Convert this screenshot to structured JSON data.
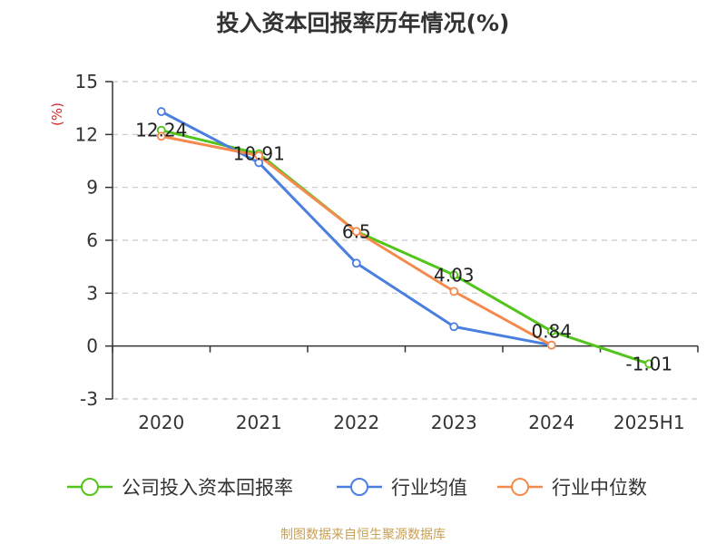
{
  "chart_data": {
    "type": "line",
    "title": "投入资本回报率历年情况(%)",
    "ylabel": "(%)",
    "xlabel": "",
    "categories": [
      "2020",
      "2021",
      "2022",
      "2023",
      "2024",
      "2025H1"
    ],
    "ylim": [
      -3,
      15
    ],
    "yticks": [
      -3,
      0,
      3,
      6,
      9,
      12,
      15
    ],
    "grid": true,
    "legend_position": "bottom",
    "series": [
      {
        "name": "公司投入资本回报率",
        "color": "#52c41a",
        "values": [
          12.24,
          10.91,
          6.5,
          4.03,
          0.84,
          -1.01
        ],
        "labels": [
          "12.24",
          "10.91",
          "6.5",
          "4.03",
          "0.84",
          "-1.01"
        ]
      },
      {
        "name": "行业均值",
        "color": "#4a7fe0",
        "values": [
          13.3,
          10.4,
          4.7,
          1.1,
          0.05,
          null
        ]
      },
      {
        "name": "行业中位数",
        "color": "#f58a4e",
        "values": [
          11.9,
          10.8,
          6.5,
          3.1,
          0.05,
          null
        ]
      }
    ],
    "ylabel_color": "#d42a2a"
  },
  "footer": {
    "source": "制图数据来自恒生聚源数据库",
    "source_color": "#c8a155"
  }
}
